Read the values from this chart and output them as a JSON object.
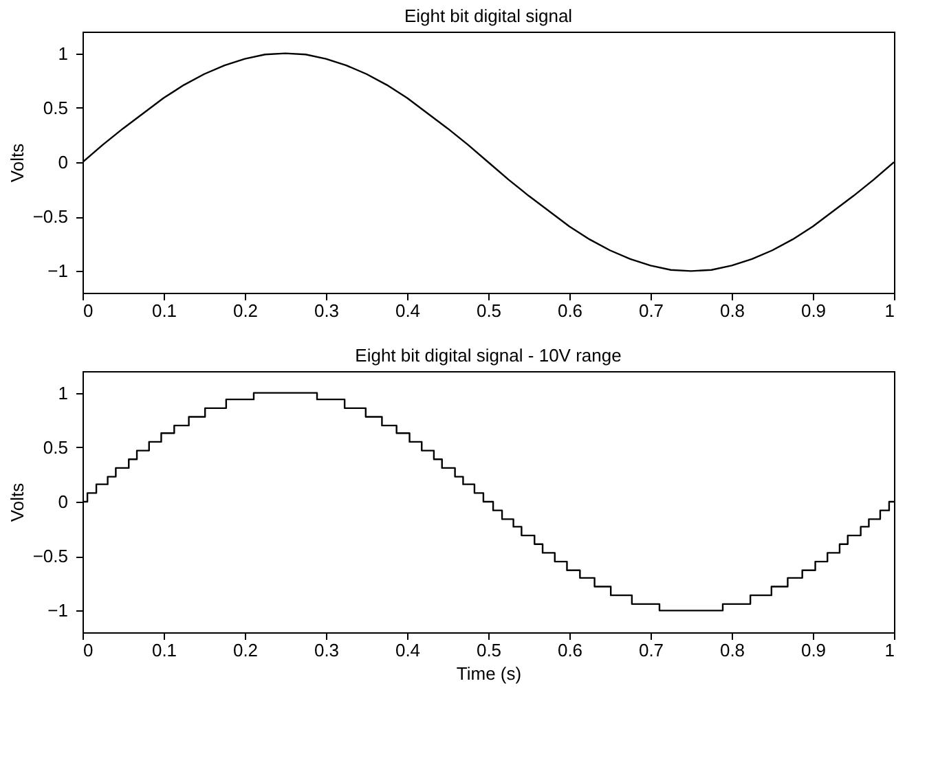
{
  "chart_data": [
    {
      "type": "line",
      "title": "Eight bit digital signal",
      "ylabel": "Volts",
      "xlim": [
        0,
        1
      ],
      "xticks": [
        0,
        0.1,
        0.2,
        0.3,
        0.4,
        0.5,
        0.6,
        0.7,
        0.8,
        0.9,
        1
      ],
      "ylim": [
        -1.2,
        1.2
      ],
      "yticks": [
        -1,
        -0.5,
        0,
        0.5,
        1
      ],
      "grid": false,
      "series": [
        {
          "color": "#000000",
          "x": [
            0,
            0.025,
            0.05,
            0.075,
            0.1,
            0.125,
            0.15,
            0.175,
            0.2,
            0.225,
            0.25,
            0.275,
            0.3,
            0.325,
            0.35,
            0.375,
            0.4,
            0.425,
            0.45,
            0.475,
            0.5,
            0.525,
            0.55,
            0.575,
            0.6,
            0.625,
            0.65,
            0.675,
            0.7,
            0.725,
            0.75,
            0.775,
            0.8,
            0.825,
            0.85,
            0.875,
            0.9,
            0.925,
            0.95,
            0.975,
            1
          ],
          "values": [
            0,
            0.16,
            0.31,
            0.45,
            0.59,
            0.71,
            0.81,
            0.89,
            0.95,
            0.99,
            1,
            0.99,
            0.95,
            0.89,
            0.81,
            0.71,
            0.59,
            0.45,
            0.31,
            0.16,
            0,
            -0.16,
            -0.31,
            -0.45,
            -0.59,
            -0.71,
            -0.81,
            -0.89,
            -0.95,
            -0.99,
            -1,
            -0.99,
            -0.95,
            -0.89,
            -0.81,
            -0.71,
            -0.59,
            -0.45,
            -0.31,
            -0.16,
            0
          ]
        }
      ]
    },
    {
      "type": "step",
      "title": "Eight bit digital signal - 10V range",
      "xlabel": "Time (s)",
      "ylabel": "Volts",
      "xlim": [
        0,
        1
      ],
      "xticks": [
        0,
        0.1,
        0.2,
        0.3,
        0.4,
        0.5,
        0.6,
        0.7,
        0.8,
        0.9,
        1
      ],
      "ylim": [
        -1.2,
        1.2
      ],
      "yticks": [
        -1,
        -0.5,
        0,
        0.5,
        1
      ],
      "grid": false,
      "series": [
        {
          "color": "#000000",
          "x": [
            0,
            0.006,
            0.017,
            0.031,
            0.041,
            0.057,
            0.067,
            0.082,
            0.097,
            0.113,
            0.131,
            0.151,
            0.177,
            0.211,
            0.289,
            0.323,
            0.349,
            0.369,
            0.387,
            0.403,
            0.418,
            0.433,
            0.443,
            0.459,
            0.469,
            0.483,
            0.494,
            0.506,
            0.517,
            0.531,
            0.541,
            0.557,
            0.567,
            0.582,
            0.597,
            0.613,
            0.631,
            0.651,
            0.677,
            0.711,
            0.789,
            0.823,
            0.849,
            0.869,
            0.887,
            0.903,
            0.918,
            0.933,
            0.943,
            0.959,
            0.969,
            0.983,
            0.994,
            1
          ],
          "values": [
            0,
            0.08,
            0.16,
            0.23,
            0.31,
            0.39,
            0.47,
            0.55,
            0.63,
            0.7,
            0.78,
            0.86,
            0.94,
            1,
            0.94,
            0.86,
            0.78,
            0.7,
            0.63,
            0.55,
            0.47,
            0.39,
            0.31,
            0.23,
            0.16,
            0.08,
            0,
            -0.08,
            -0.16,
            -0.23,
            -0.31,
            -0.39,
            -0.47,
            -0.55,
            -0.63,
            -0.7,
            -0.78,
            -0.86,
            -0.94,
            -1,
            -0.94,
            -0.86,
            -0.78,
            -0.7,
            -0.63,
            -0.55,
            -0.47,
            -0.39,
            -0.31,
            -0.23,
            -0.16,
            -0.08,
            0,
            0
          ]
        }
      ]
    }
  ]
}
